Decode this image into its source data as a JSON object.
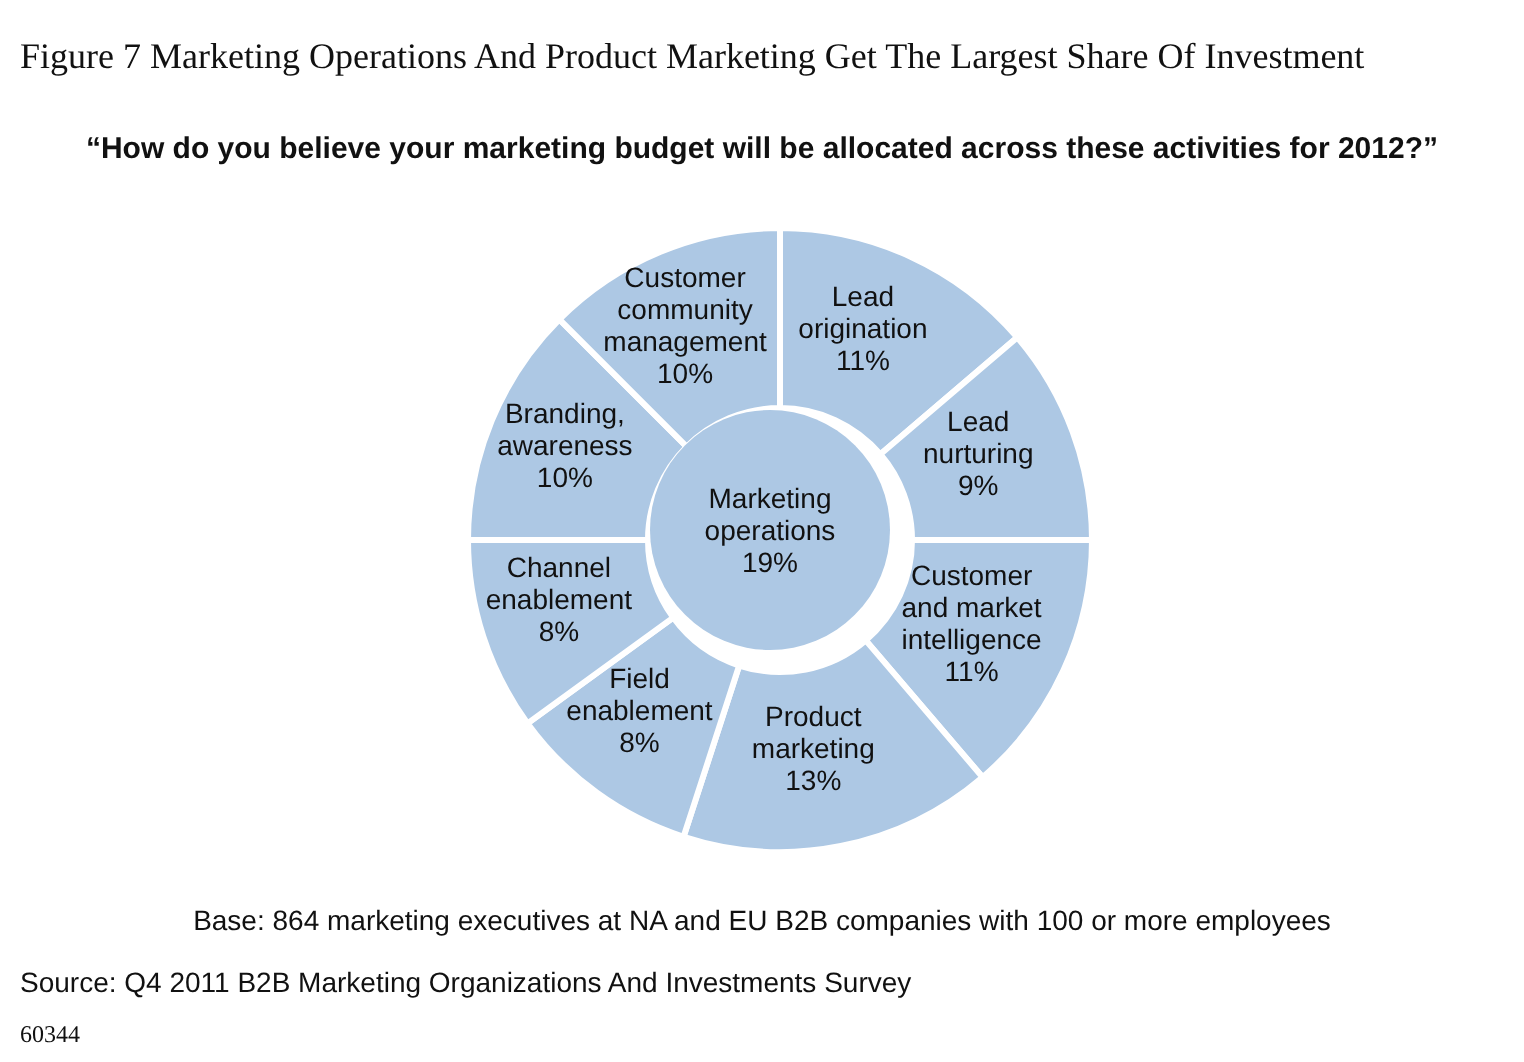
{
  "chart_data": {
    "type": "donut",
    "title": "Figure 7 Marketing Operations And Product Marketing Get The Largest Share Of Investment",
    "subtitle": "“How do you believe your marketing budget will be allocated across these activities for 2012?”",
    "categories": [
      "Lead origination",
      "Lead nurturing",
      "Customer and market intelligence",
      "Product marketing",
      "Field enablement",
      "Channel enablement",
      "Branding, awareness",
      "Customer community management"
    ],
    "values": [
      11,
      9,
      11,
      13,
      8,
      8,
      10,
      10
    ],
    "value_labels": [
      "11%",
      "9%",
      "11%",
      "13%",
      "8%",
      "8%",
      "10%",
      "10%"
    ],
    "color": "#adc8e4",
    "legend": false,
    "annotations": [
      "Marketing operations 19%",
      "Base: 864 marketing executives at NA and EU B2B companies with 100 or more employees",
      "Source: Q4 2011 B2B Marketing Organizations And Investments Survey",
      "60344"
    ]
  }
}
